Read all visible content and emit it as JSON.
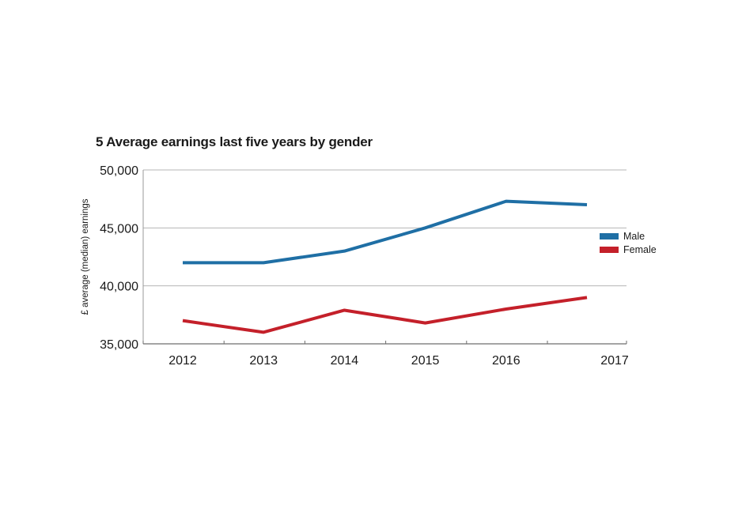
{
  "chart_data": {
    "type": "line",
    "title": "5 Average earnings last five years by gender",
    "xlabel": "",
    "ylabel": "£ average (median) earnings",
    "categories": [
      "2012",
      "2013",
      "2014",
      "2015",
      "2016",
      "2017"
    ],
    "ylim": [
      35000,
      50000
    ],
    "yticks": [
      35000,
      40000,
      45000,
      50000
    ],
    "ytick_labels": [
      "35,000",
      "40,000",
      "45,000",
      "50,000"
    ],
    "grid": "horizontal",
    "legend_position": "right",
    "series": [
      {
        "name": "Male",
        "color": "#1f6fa5",
        "values": [
          42000,
          42000,
          43000,
          45000,
          47300,
          47000
        ]
      },
      {
        "name": "Female",
        "color": "#c4202a",
        "values": [
          37000,
          36000,
          37900,
          36800,
          38000,
          39000
        ]
      }
    ]
  }
}
